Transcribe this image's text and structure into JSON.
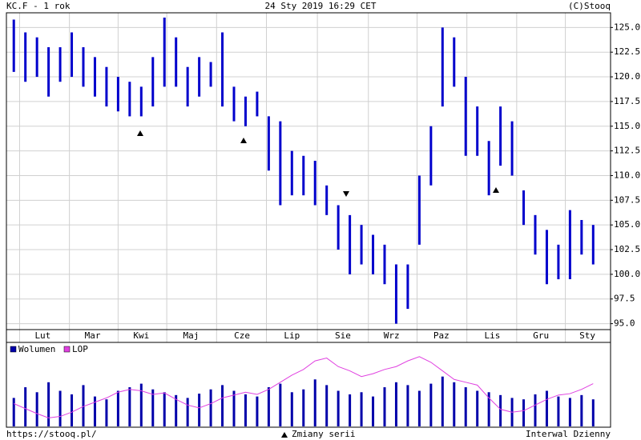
{
  "chart_data": [
    {
      "type": "ohlc",
      "title": "KC.F - 1 rok",
      "subtitle": "24 Sty 2019 16:29 CET",
      "credit": "(C)Stooq",
      "xlim": [
        0,
        52
      ],
      "xticks": [
        {
          "value": 3.0,
          "label": "Lut"
        },
        {
          "value": 7.3,
          "label": "Mar"
        },
        {
          "value": 11.5,
          "label": "Kwi"
        },
        {
          "value": 15.8,
          "label": "Maj"
        },
        {
          "value": 20.2,
          "label": "Cze"
        },
        {
          "value": 24.5,
          "label": "Lip"
        },
        {
          "value": 28.9,
          "label": "Sie"
        },
        {
          "value": 33.1,
          "label": "Wrz"
        },
        {
          "value": 37.4,
          "label": "Paz"
        },
        {
          "value": 41.8,
          "label": "Lis"
        },
        {
          "value": 46.0,
          "label": "Gru"
        },
        {
          "value": 50.0,
          "label": "Sty"
        }
      ],
      "xgrid": [
        1.0,
        5.3,
        9.5,
        13.7,
        18.0,
        22.3,
        26.7,
        31.1,
        35.3,
        39.6,
        43.9,
        48.1
      ],
      "ylim": [
        94.4,
        126
      ],
      "yticks": [
        {
          "value": 95,
          "label": "95.0"
        },
        {
          "value": 97.5,
          "label": "97.5"
        },
        {
          "value": 100,
          "label": "100.0"
        },
        {
          "value": 102.5,
          "label": "102.5"
        },
        {
          "value": 105,
          "label": "105.0"
        },
        {
          "value": 107.5,
          "label": "107.5"
        },
        {
          "value": 110,
          "label": "110.0"
        },
        {
          "value": 112.5,
          "label": "112.5"
        },
        {
          "value": 115,
          "label": "115.0"
        },
        {
          "value": 117.5,
          "label": "117.5"
        },
        {
          "value": 120,
          "label": "120.0"
        },
        {
          "value": 122.5,
          "label": "122.5"
        },
        {
          "value": 125,
          "label": "125.0"
        }
      ],
      "grid": true,
      "series": [
        {
          "color": "#0000cc",
          "low": [
            120.5,
            119.5,
            120,
            118,
            119.5,
            120,
            119,
            118,
            117,
            116.5,
            116,
            116,
            117,
            119,
            119,
            117,
            118,
            119,
            117,
            115.5,
            115,
            116,
            110.5,
            107,
            108,
            108,
            107,
            106,
            102.5,
            100,
            101,
            100,
            99,
            95,
            96.5,
            103,
            109,
            117,
            119,
            112,
            112,
            108,
            111,
            110,
            105,
            102,
            99,
            99.5,
            99.5,
            102,
            101
          ],
          "high": [
            125.8,
            124.5,
            124,
            123,
            123,
            124.5,
            123,
            122,
            121,
            120,
            119.5,
            119,
            122,
            126,
            124,
            121,
            122,
            121.5,
            124.5,
            119,
            118,
            118.5,
            116,
            115.5,
            112.5,
            112,
            111.5,
            109,
            107,
            106,
            105,
            104,
            103,
            101,
            101,
            110,
            115,
            125,
            124,
            120,
            117,
            113.5,
            117,
            115.5,
            108.5,
            106,
            104.5,
            103,
            106.5,
            105.5,
            105
          ]
        }
      ]
    },
    {
      "type": "bar",
      "xlim": [
        0,
        52
      ],
      "ylim": [
        0,
        100
      ],
      "series": [
        {
          "name": "Wolumen",
          "color": "#0000aa",
          "values": [
            40,
            55,
            48,
            62,
            50,
            45,
            58,
            42,
            38,
            50,
            55,
            60,
            52,
            48,
            44,
            40,
            46,
            52,
            58,
            50,
            45,
            42,
            55,
            60,
            48,
            52,
            66,
            58,
            50,
            45,
            48,
            42,
            55,
            62,
            58,
            50,
            60,
            70,
            62,
            55,
            50,
            48,
            44,
            40,
            38,
            45,
            50,
            42,
            40,
            44,
            38
          ]
        },
        {
          "name": "LOP",
          "color": "#e040e0",
          "values": [
            32,
            25,
            18,
            12,
            14,
            20,
            28,
            34,
            40,
            48,
            52,
            50,
            45,
            47,
            38,
            30,
            26,
            32,
            40,
            44,
            48,
            45,
            52,
            62,
            72,
            80,
            92,
            96,
            84,
            78,
            70,
            74,
            80,
            84,
            92,
            98,
            90,
            78,
            66,
            62,
            58,
            40,
            24,
            20,
            22,
            30,
            38,
            44,
            46,
            52,
            60
          ]
        }
      ]
    }
  ],
  "footer": {
    "url": "https://stooq.pl/",
    "note": "Zmiany serii",
    "interval": "Interwal Dzienny"
  }
}
